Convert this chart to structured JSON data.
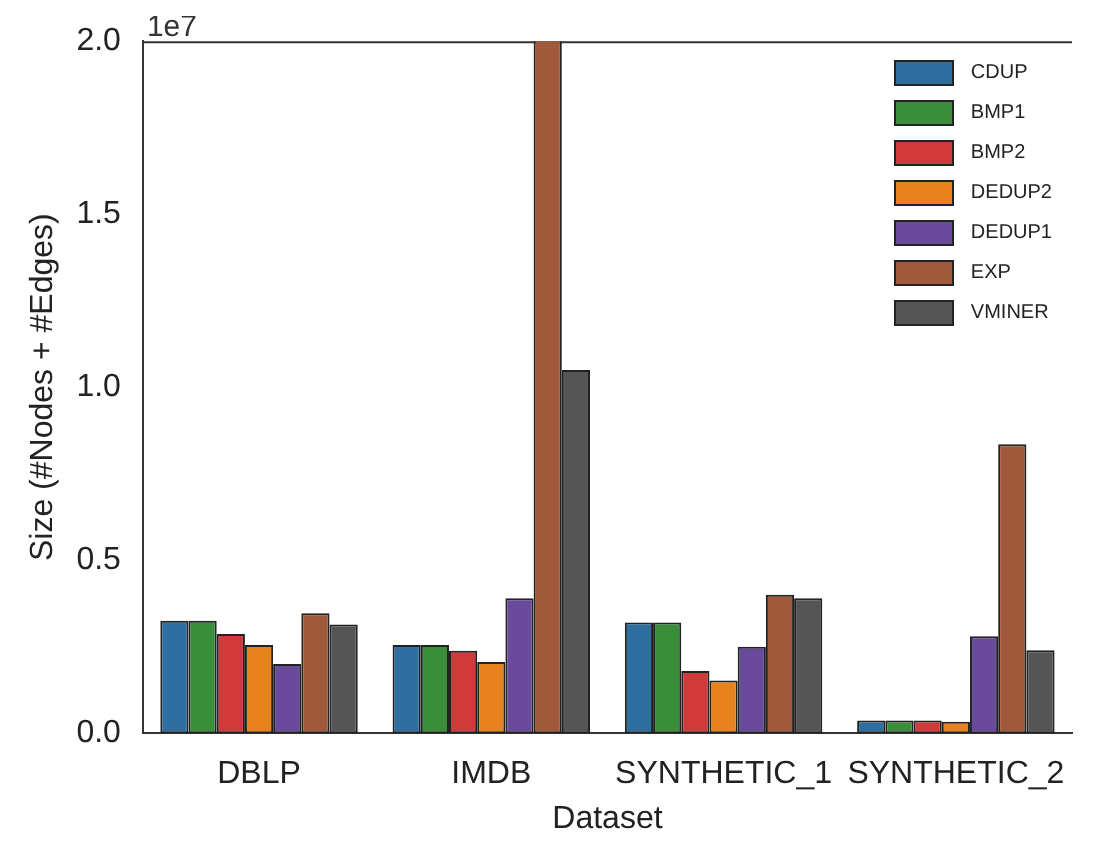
{
  "chart_data": {
    "type": "bar",
    "xlabel": "Dataset",
    "ylabel": "Size (#Nodes + #Edges)",
    "annotations": [
      "1e7"
    ],
    "categories": [
      "DBLP",
      "IMDB",
      "SYNTHETIC_1",
      "SYNTHETIC_2"
    ],
    "legend": "top right",
    "grid": false,
    "ylim": [
      0,
      2.0
    ],
    "yticks": [
      {
        "value": 0,
        "label": "0.0"
      },
      {
        "value": 0.5,
        "label": "0.5"
      },
      {
        "value": 1,
        "label": "1.0"
      },
      {
        "value": 1.5,
        "label": "1.5"
      },
      {
        "value": 2,
        "label": "2.0"
      }
    ],
    "series": [
      {
        "name": "CDUP",
        "color": "#2f6fa0",
        "values": [
          0.325,
          0.255,
          0.32,
          0.037
        ]
      },
      {
        "name": "BMP1",
        "color": "#3a8d3a",
        "values": [
          0.325,
          0.255,
          0.32,
          0.037
        ]
      },
      {
        "name": "BMP2",
        "color": "#d03a3a",
        "values": [
          0.287,
          0.238,
          0.18,
          0.037
        ]
      },
      {
        "name": "DEDUP2",
        "color": "#e8821e",
        "values": [
          0.255,
          0.206,
          0.152,
          0.033
        ]
      },
      {
        "name": "DEDUP1",
        "color": "#6a4a9a",
        "values": [
          0.2,
          0.39,
          0.25,
          0.28
        ]
      },
      {
        "name": "EXP",
        "color": "#a0593a",
        "values": [
          0.347,
          2.0,
          0.4,
          0.835
        ]
      },
      {
        "name": "VMINER",
        "color": "#555555",
        "values": [
          0.314,
          1.05,
          0.39,
          0.24
        ]
      }
    ]
  }
}
